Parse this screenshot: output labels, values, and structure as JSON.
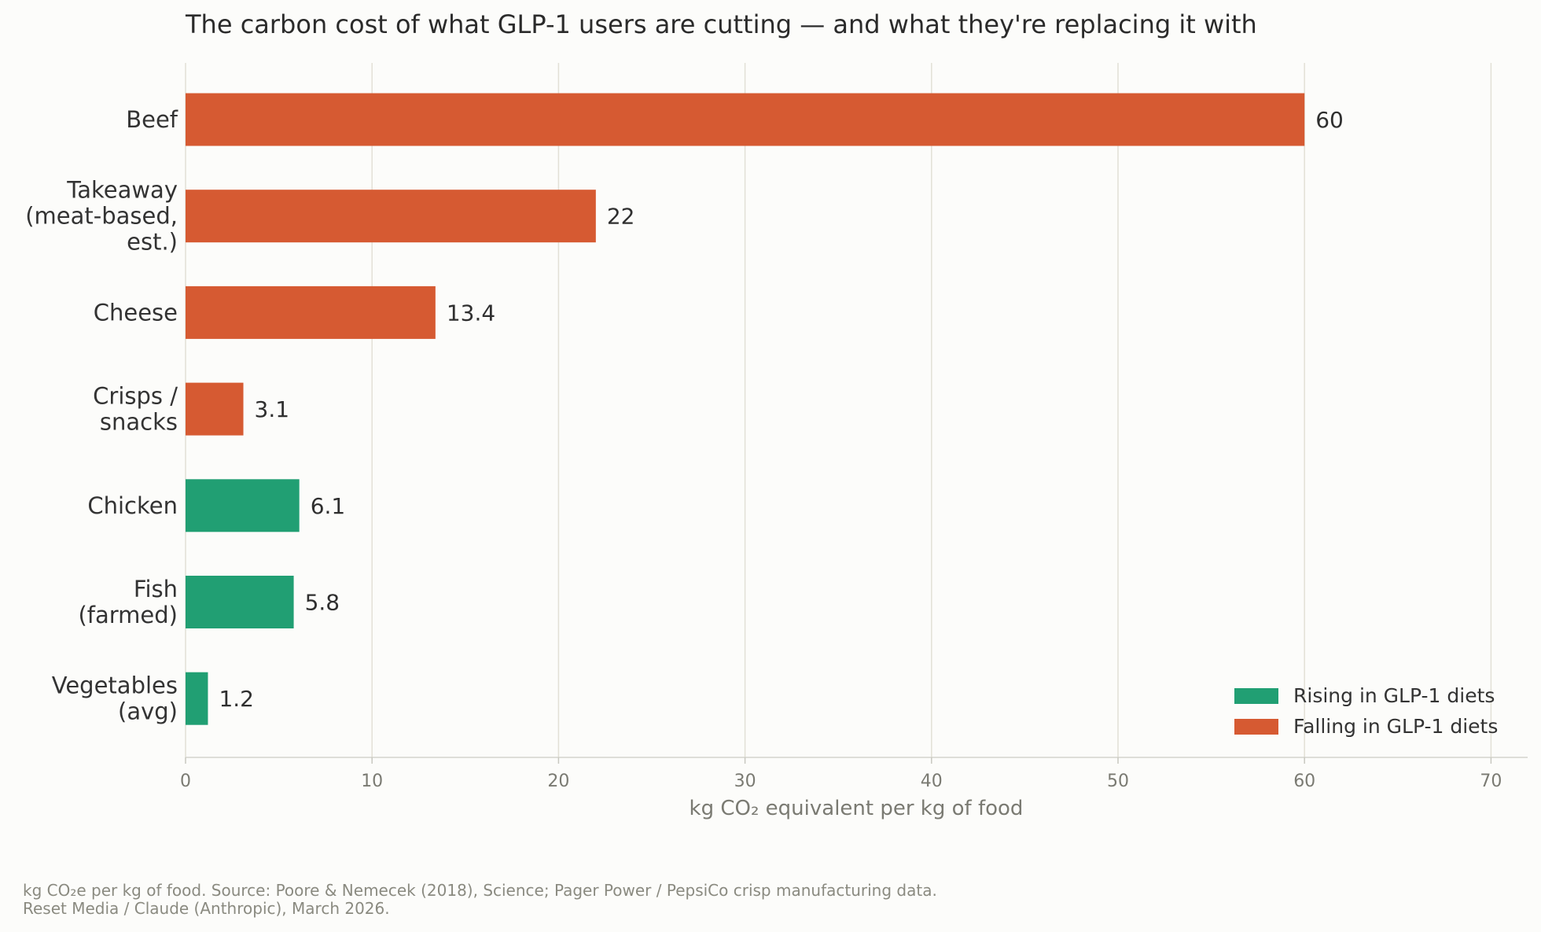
{
  "chart_data": {
    "type": "bar",
    "orientation": "horizontal",
    "title": "The carbon cost of what GLP-1 users are cutting — and what they're replacing it with",
    "xlabel": "kg CO₂ equivalent per kg of food",
    "ylabel": "",
    "xlim": [
      0,
      72
    ],
    "xticks": [
      0,
      10,
      20,
      30,
      40,
      50,
      60,
      70
    ],
    "grid": "vertical",
    "legend_position": "bottom-right",
    "categories": [
      [
        "Beef"
      ],
      [
        "Takeaway",
        "(meat-based,",
        "est.)"
      ],
      [
        "Cheese"
      ],
      [
        "Crisps /",
        "snacks"
      ],
      [
        "Chicken"
      ],
      [
        "Fish",
        "(farmed)"
      ],
      [
        "Vegetables",
        "(avg)"
      ]
    ],
    "values": [
      60,
      22,
      13.4,
      3.1,
      6.1,
      5.8,
      1.2
    ],
    "value_labels": [
      "60",
      "22",
      "13.4",
      "3.1",
      "6.1",
      "5.8",
      "1.2"
    ],
    "groups": [
      "falling",
      "falling",
      "falling",
      "falling",
      "rising",
      "rising",
      "rising"
    ],
    "legend": [
      {
        "key": "rising",
        "label": "Rising in GLP-1 diets",
        "color": "#219f73"
      },
      {
        "key": "falling",
        "label": "Falling in GLP-1 diets",
        "color": "#d65a32"
      }
    ]
  },
  "footer": {
    "source_line1": "kg CO₂e per kg of food. Source: Poore & Nemecek (2018), Science; Pager Power / PepsiCo crisp manufacturing data.",
    "source_line2": "Reset Media / Claude (Anthropic), March 2026."
  }
}
